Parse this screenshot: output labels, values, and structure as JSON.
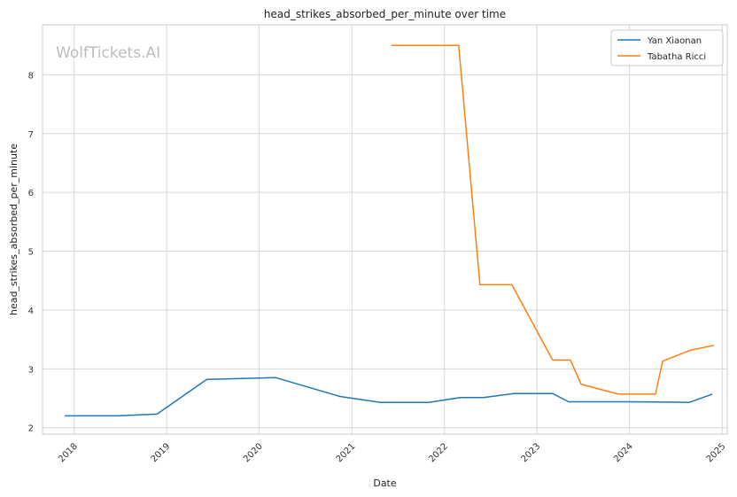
{
  "chart_data": {
    "type": "line",
    "title": "head_strikes_absorbed_per_minute over time",
    "xlabel": "Date",
    "ylabel": "head_strikes_absorbed_per_minute",
    "watermark": "WolfTickets.AI",
    "x_ticks": [
      "2018",
      "2019",
      "2020",
      "2021",
      "2022",
      "2023",
      "2024",
      "2025"
    ],
    "y_ticks": [
      2,
      3,
      4,
      5,
      6,
      7,
      8
    ],
    "xlim": [
      "2017-08-29",
      "2025-01-21"
    ],
    "ylim": [
      1.89,
      8.85
    ],
    "grid": true,
    "legend_position": "top-right",
    "series": [
      {
        "name": "Yan Xiaonan",
        "color": "#1f77b4",
        "points": [
          {
            "x": "2017-11-25",
            "y": 2.2
          },
          {
            "x": "2018-06-23",
            "y": 2.2
          },
          {
            "x": "2018-11-24",
            "y": 2.23
          },
          {
            "x": "2019-06-08",
            "y": 2.82
          },
          {
            "x": "2020-03-07",
            "y": 2.85
          },
          {
            "x": "2020-11-14",
            "y": 2.53
          },
          {
            "x": "2021-04-24",
            "y": 2.43
          },
          {
            "x": "2021-10-30",
            "y": 2.43
          },
          {
            "x": "2022-03-05",
            "y": 2.51
          },
          {
            "x": "2022-06-04",
            "y": 2.51
          },
          {
            "x": "2022-10-01",
            "y": 2.58
          },
          {
            "x": "2023-03-04",
            "y": 2.58
          },
          {
            "x": "2023-05-06",
            "y": 2.44
          },
          {
            "x": "2023-12-30",
            "y": 2.44
          },
          {
            "x": "2024-08-24",
            "y": 2.43
          },
          {
            "x": "2024-11-23",
            "y": 2.57
          }
        ]
      },
      {
        "name": "Tabatha Ricci",
        "color": "#ff7f0e",
        "points": [
          {
            "x": "2021-06-05",
            "y": 8.5
          },
          {
            "x": "2022-02-26",
            "y": 8.5
          },
          {
            "x": "2022-05-21",
            "y": 4.43
          },
          {
            "x": "2022-09-24",
            "y": 4.43
          },
          {
            "x": "2023-03-04",
            "y": 3.15
          },
          {
            "x": "2023-05-13",
            "y": 3.15
          },
          {
            "x": "2023-06-24",
            "y": 2.74
          },
          {
            "x": "2023-11-18",
            "y": 2.57
          },
          {
            "x": "2024-04-13",
            "y": 2.57
          },
          {
            "x": "2024-05-11",
            "y": 3.13
          },
          {
            "x": "2024-08-31",
            "y": 3.32
          },
          {
            "x": "2024-11-30",
            "y": 3.4
          }
        ]
      }
    ]
  }
}
